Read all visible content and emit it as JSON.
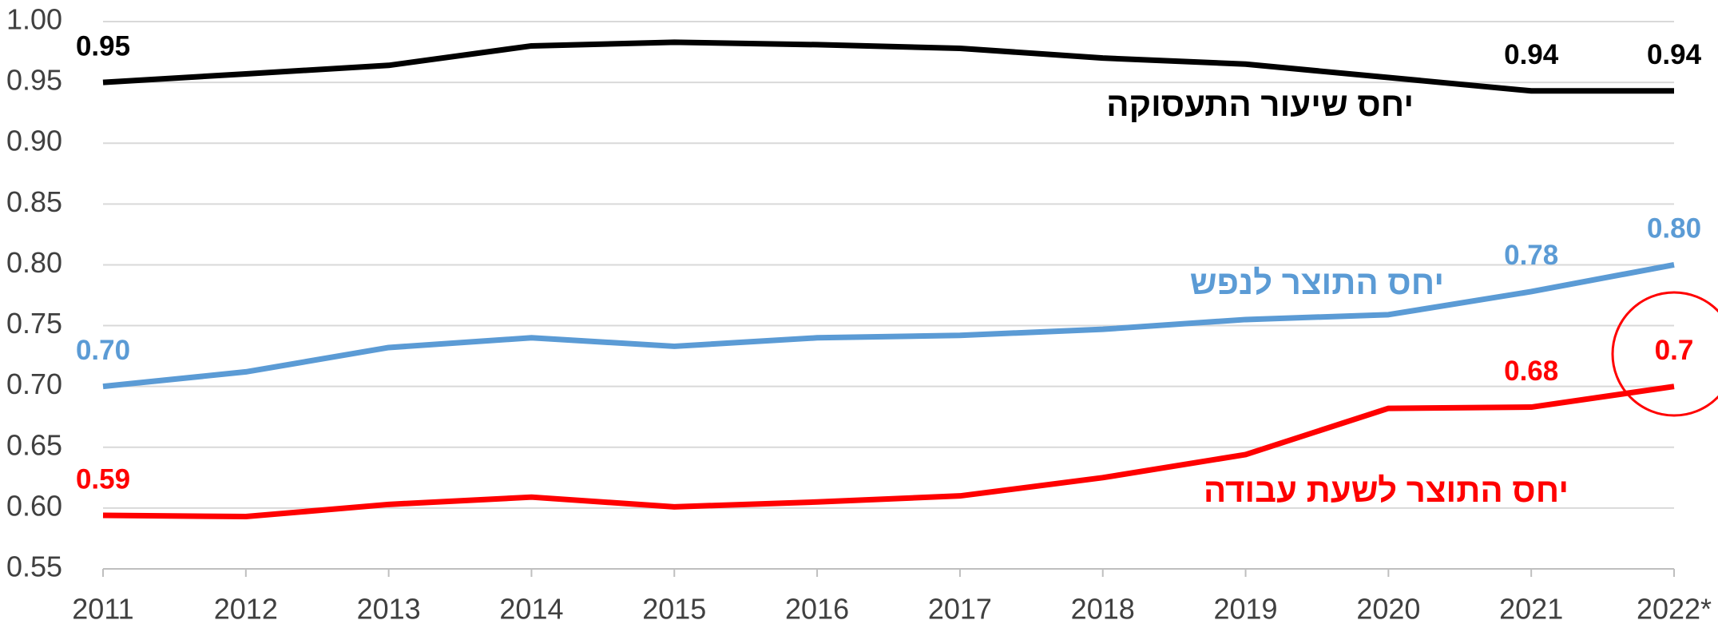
{
  "chart_data": {
    "type": "line",
    "categories": [
      "2011",
      "2012",
      "2013",
      "2014",
      "2015",
      "2016",
      "2017",
      "2018",
      "2019",
      "2020",
      "2021",
      "2022*"
    ],
    "series": [
      {
        "name": "יחס שיעור התעסוקה",
        "color": "#000000",
        "values": [
          0.95,
          0.957,
          0.964,
          0.98,
          0.983,
          0.981,
          0.978,
          0.97,
          0.965,
          0.954,
          0.943,
          0.943
        ],
        "value_labels": [
          "0.95",
          null,
          null,
          null,
          null,
          null,
          null,
          null,
          null,
          null,
          "0.94",
          "0.94"
        ]
      },
      {
        "name": "יחס התוצר לנפש",
        "color": "#5b9bd5",
        "values": [
          0.7,
          0.712,
          0.732,
          0.74,
          0.733,
          0.74,
          0.742,
          0.747,
          0.755,
          0.759,
          0.778,
          0.8
        ],
        "value_labels": [
          "0.70",
          null,
          null,
          null,
          null,
          null,
          null,
          null,
          null,
          null,
          "0.78",
          "0.80"
        ]
      },
      {
        "name": "יחס התוצר לשעת עבודה",
        "color": "#ff0000",
        "values": [
          0.594,
          0.593,
          0.603,
          0.609,
          0.601,
          0.605,
          0.61,
          0.625,
          0.644,
          0.682,
          0.683,
          0.7
        ],
        "value_labels": [
          "0.59",
          null,
          null,
          null,
          null,
          null,
          null,
          null,
          null,
          null,
          "0.68",
          "0.7"
        ]
      }
    ],
    "ylim": [
      0.55,
      1.0
    ],
    "yticks": [
      {
        "value": 1.0,
        "label": "1.00"
      },
      0.95,
      {
        "value": 0.9,
        "label": "0.90"
      },
      0.85,
      {
        "value": 0.8,
        "label": "0.80"
      },
      0.75,
      {
        "value": 0.7,
        "label": "0.70"
      },
      0.65,
      {
        "value": 0.6,
        "label": "0.60"
      },
      0.55
    ],
    "grid": true
  }
}
